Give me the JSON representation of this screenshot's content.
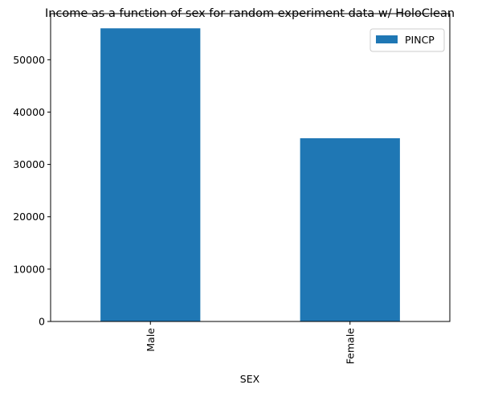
{
  "chart_data": {
    "type": "bar",
    "title": "Income as a function of sex for random experiment data w/ HoloClean",
    "xlabel": "SEX",
    "ylabel": "",
    "categories": [
      "Male",
      "Female"
    ],
    "series": [
      {
        "name": "PINCP",
        "values": [
          56000,
          35000
        ],
        "color": "#1f77b4"
      }
    ],
    "ylim": [
      0,
      58800
    ],
    "yticks": [
      0,
      10000,
      20000,
      30000,
      40000,
      50000
    ],
    "ytick_labels": [
      "0",
      "10000",
      "20000",
      "30000",
      "40000",
      "50000"
    ],
    "grid": false,
    "legend_position": "top-right",
    "xtick_rotation": "vertical"
  }
}
